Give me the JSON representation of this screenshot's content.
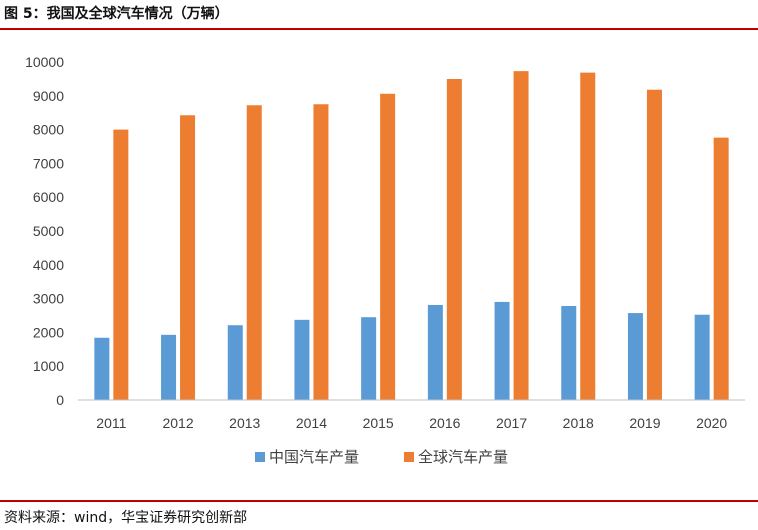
{
  "figure": {
    "title": "图 5：我国及全球汽车情况（万辆）",
    "source": "资料来源：wind，华宝证券研究创新部"
  },
  "colors": {
    "rule": "#c00000",
    "china": "#5b9bd5",
    "global": "#ed7d31",
    "axis": "#bfbfbf"
  },
  "chart_data": {
    "type": "bar",
    "categories": [
      "2011",
      "2012",
      "2013",
      "2014",
      "2015",
      "2016",
      "2017",
      "2018",
      "2019",
      "2020"
    ],
    "series": [
      {
        "name": "中国汽车产量",
        "color": "#5b9bd5",
        "values": [
          1842,
          1928,
          2212,
          2372,
          2450,
          2812,
          2902,
          2781,
          2572,
          2523
        ]
      },
      {
        "name": "全球汽车产量",
        "color": "#ed7d31",
        "values": [
          8000,
          8424,
          8720,
          8750,
          9060,
          9497,
          9730,
          9686,
          9179,
          7762
        ]
      }
    ],
    "ylim": [
      0,
      10000
    ],
    "yticks": [
      "0",
      "1000",
      "2000",
      "3000",
      "4000",
      "5000",
      "6000",
      "7000",
      "8000",
      "9000",
      "10000"
    ],
    "grid": false,
    "legend_position": "bottom"
  }
}
